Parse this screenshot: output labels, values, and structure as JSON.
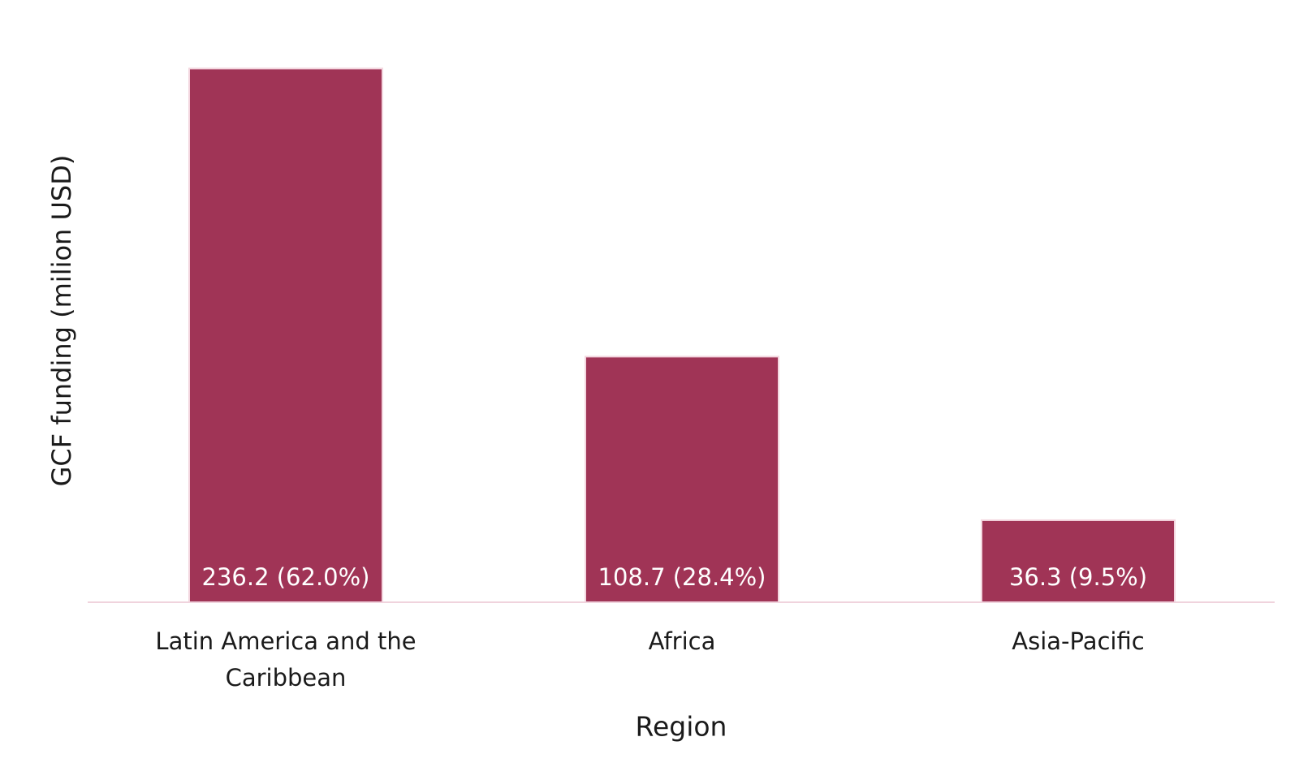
{
  "chart_data": {
    "type": "bar",
    "y_label": "GCF funding (milion USD)",
    "x_label": "Region",
    "categories": [
      "Latin America and the Caribbean",
      "Africa",
      "Asia-Pacific"
    ],
    "values": [
      236.2,
      108.7,
      36.3
    ],
    "value_labels": [
      "236.2 (62.0%)",
      "108.7 (28.4%)",
      "36.3 (9.5%)"
    ],
    "color": "#a03456",
    "ylim": [
      0,
      250
    ]
  }
}
